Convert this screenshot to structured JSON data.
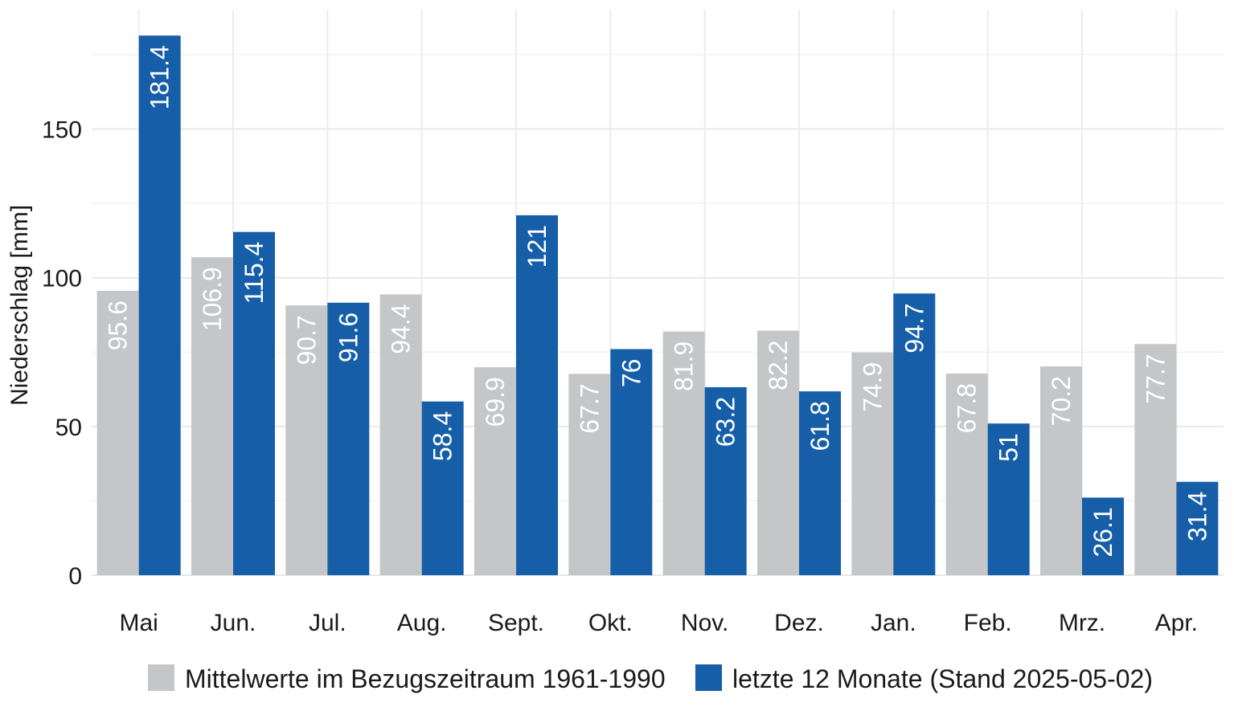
{
  "chart_data": {
    "type": "bar",
    "title": "",
    "xlabel": "",
    "ylabel": "Niederschlag [mm]",
    "ylim": [
      0,
      185
    ],
    "yticks": [
      0,
      50,
      100,
      150
    ],
    "grid": true,
    "legend_position": "bottom",
    "categories": [
      "Mai",
      "Jun.",
      "Jul.",
      "Aug.",
      "Sept.",
      "Okt.",
      "Nov.",
      "Dez.",
      "Jan.",
      "Feb.",
      "Mrz.",
      "Apr."
    ],
    "series": [
      {
        "name": "Mittelwerte im Bezugszeitraum 1961-1990",
        "color": "#c4c6c7",
        "values": [
          95.6,
          106.9,
          90.7,
          94.4,
          69.9,
          67.7,
          81.9,
          82.2,
          74.9,
          67.8,
          70.2,
          77.7
        ]
      },
      {
        "name": "letzte 12 Monate (Stand 2025-05-02)",
        "color": "#165ea8",
        "values": [
          181.4,
          115.4,
          91.6,
          58.4,
          121,
          76,
          63.2,
          61.8,
          94.7,
          51,
          26.1,
          31.4
        ]
      }
    ]
  }
}
